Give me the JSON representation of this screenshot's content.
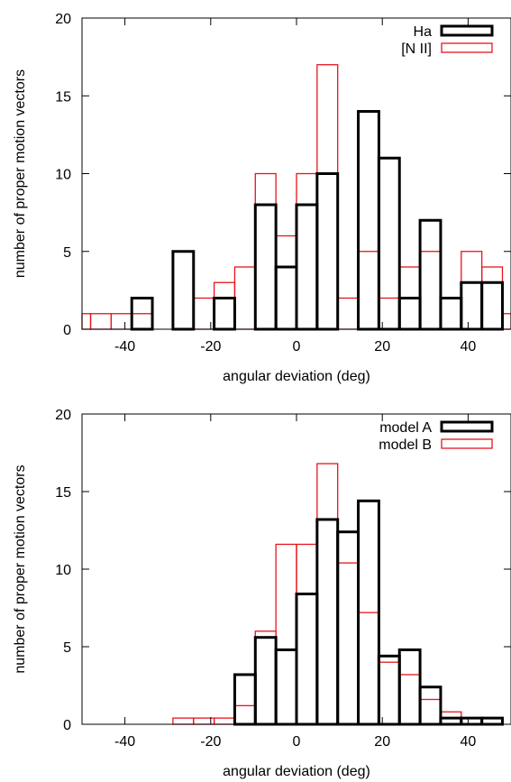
{
  "chart_data": [
    {
      "type": "histogram",
      "title": "",
      "xlabel": "angular deviation (deg)",
      "ylabel": "number of proper motion vectors",
      "xlim": [
        -50,
        50
      ],
      "ylim": [
        0,
        20
      ],
      "xticks": [
        -40,
        -20,
        0,
        20,
        40
      ],
      "yticks": [
        0,
        5,
        10,
        15,
        20
      ],
      "bin_width": 4.8,
      "legend_position": "top-right",
      "grid": false,
      "series": [
        {
          "name": "Ha",
          "color": "#000000",
          "line_width": "thick",
          "bin_left_edges": [
            -38.4,
            -28.8,
            -19.2,
            -9.6,
            -4.8,
            0,
            4.8,
            14.4,
            19.2,
            24,
            28.8,
            33.6,
            38.4,
            43.2
          ],
          "counts": [
            2,
            5,
            2,
            8,
            4,
            8,
            10,
            14,
            11,
            2,
            7,
            2,
            3,
            3
          ]
        },
        {
          "name": "[N II]",
          "color": "#e8141c",
          "line_width": "thin",
          "bin_left_edges": [
            -52.8,
            -48,
            -43.2,
            -38.4,
            -28.8,
            -24,
            -19.2,
            -14.4,
            -9.6,
            -4.8,
            0,
            4.8,
            9.6,
            14.4,
            19.2,
            24,
            28.8,
            33.6,
            38.4,
            43.2,
            48
          ],
          "counts": [
            1,
            1,
            1,
            1,
            0,
            2,
            3,
            4,
            10,
            6,
            10,
            17,
            2,
            5,
            2,
            4,
            5,
            2,
            5,
            4,
            1
          ]
        }
      ]
    },
    {
      "type": "histogram",
      "title": "",
      "xlabel": "angular deviation (deg)",
      "ylabel": "number of proper motion vectors",
      "xlim": [
        -50,
        50
      ],
      "ylim": [
        0,
        20
      ],
      "xticks": [
        -40,
        -20,
        0,
        20,
        40
      ],
      "yticks": [
        0,
        5,
        10,
        15,
        20
      ],
      "bin_width": 4.8,
      "legend_position": "top-right",
      "grid": false,
      "series": [
        {
          "name": "model A",
          "color": "#000000",
          "line_width": "thick",
          "bin_left_edges": [
            -14.4,
            -9.6,
            -4.8,
            0,
            4.8,
            9.6,
            14.4,
            19.2,
            24,
            28.8,
            33.6,
            38.4,
            43.2
          ],
          "counts": [
            3.2,
            5.6,
            4.8,
            8.4,
            13.2,
            12.4,
            14.4,
            4.4,
            4.8,
            2.4,
            0.4,
            0.4,
            0.4
          ]
        },
        {
          "name": "model B",
          "color": "#e8141c",
          "line_width": "thin",
          "bin_left_edges": [
            -28.8,
            -24,
            -19.2,
            -14.4,
            -9.6,
            -4.8,
            0,
            4.8,
            9.6,
            14.4,
            19.2,
            24,
            28.8,
            33.6,
            38.4,
            43.2
          ],
          "counts": [
            0.4,
            0.4,
            0.4,
            1.2,
            6.0,
            11.6,
            11.6,
            16.8,
            10.4,
            7.2,
            4.0,
            3.2,
            1.6,
            0.8,
            0.4,
            0.4
          ]
        }
      ]
    }
  ]
}
